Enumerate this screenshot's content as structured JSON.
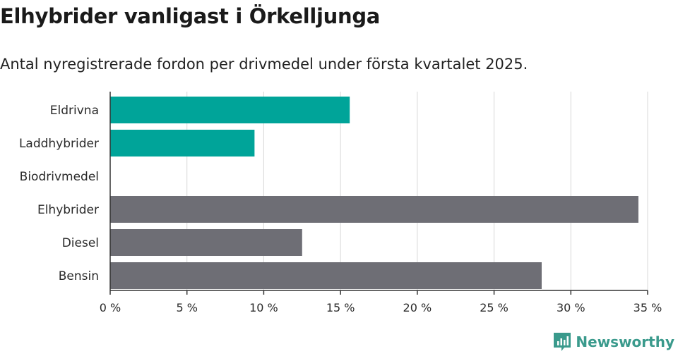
{
  "title": "Elhybrider vanligast i Örkelljunga",
  "subtitle": "Antal nyregistrerade fordon per drivmedel under första kvartalet 2025.",
  "brand": "Newsworthy",
  "colors": {
    "teal": "#00a499",
    "gray": "#6e6e75",
    "grid": "#d8d8d8",
    "axis": "#333333",
    "brand": "#3a9a8c"
  },
  "chart_data": {
    "type": "bar",
    "orientation": "horizontal",
    "categories": [
      "Eldrivna",
      "Laddhybrider",
      "Biodrivmedel",
      "Elhybrider",
      "Diesel",
      "Bensin"
    ],
    "values": [
      15.6,
      9.4,
      0,
      34.4,
      12.5,
      28.1
    ],
    "bar_colors": [
      "teal",
      "teal",
      "teal",
      "gray",
      "gray",
      "gray"
    ],
    "xlim": [
      0,
      35
    ],
    "xticks": [
      0,
      5,
      10,
      15,
      20,
      25,
      30,
      35
    ],
    "xtick_labels": [
      "0 %",
      "5 %",
      "10 %",
      "15 %",
      "20 %",
      "25 %",
      "30 %",
      "35 %"
    ],
    "grid": true,
    "legend": "none"
  }
}
